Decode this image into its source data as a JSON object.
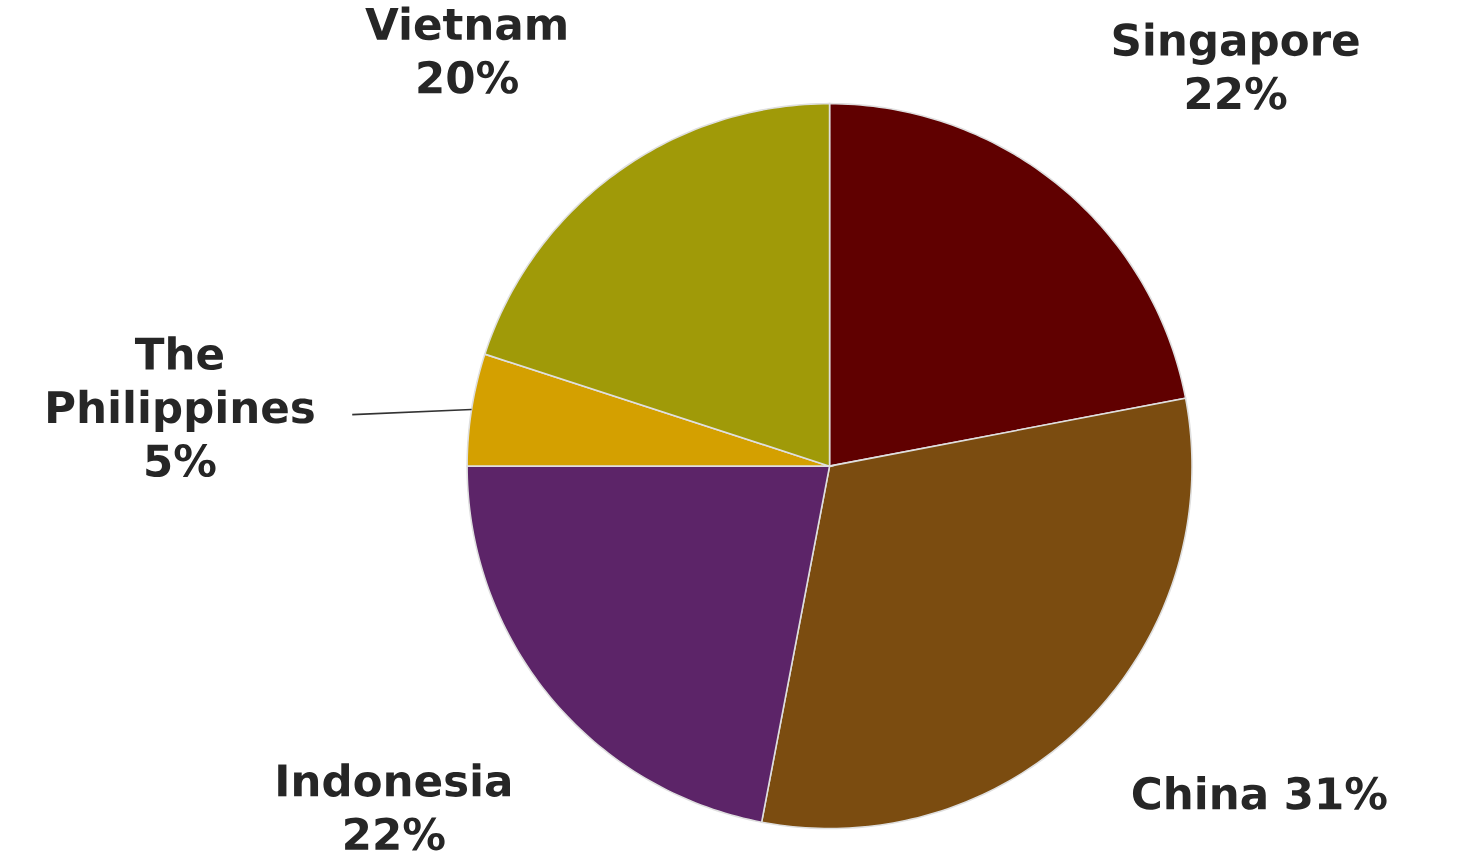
{
  "chart_data": {
    "type": "pie",
    "categories": [
      "Singapore",
      "China",
      "Indonesia",
      "The Philippines",
      "Vietnam"
    ],
    "values": [
      22,
      31,
      22,
      5,
      20
    ],
    "value_labels": [
      "22%",
      "31%",
      "22%",
      "5%",
      "20%"
    ],
    "colors": [
      "#600000",
      "#7b4c10",
      "#5c2468",
      "#d4a000",
      "#a09a08"
    ]
  }
}
